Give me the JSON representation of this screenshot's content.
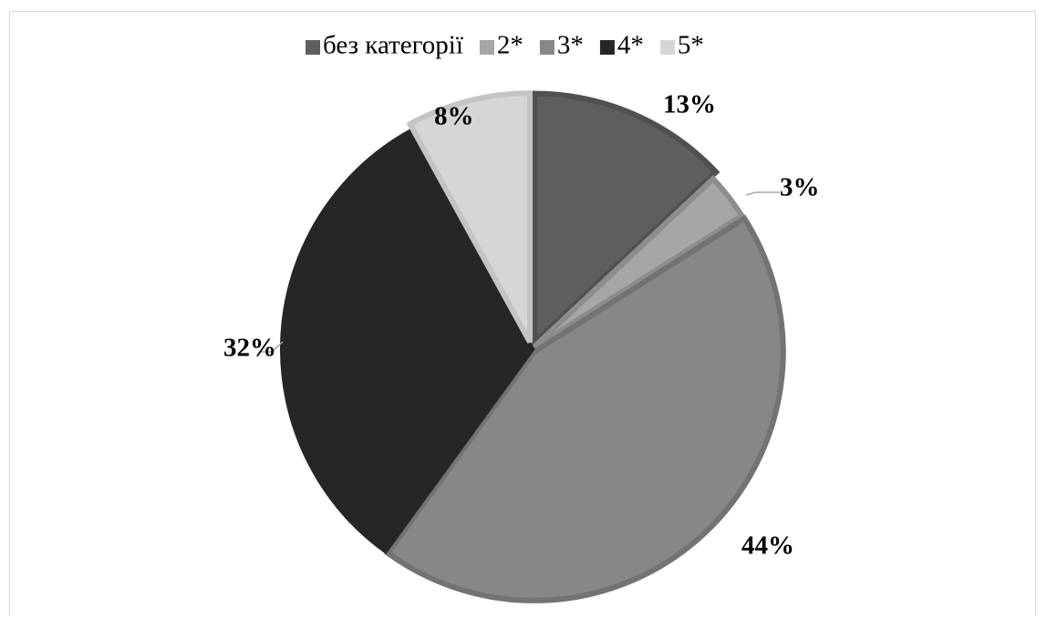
{
  "chart_data": {
    "type": "pie",
    "title": "",
    "series": [
      {
        "values": [
          13,
          3,
          44,
          32,
          8
        ]
      }
    ],
    "categories": [
      "без категорії",
      "2*",
      "3*",
      "4*",
      "5*"
    ],
    "data_labels": [
      "13%",
      "3%",
      "44%",
      "32%",
      "8%"
    ],
    "colors": [
      "#5e5e5e",
      "#a6a6a6",
      "#878787",
      "#262626",
      "#d6d6d6"
    ],
    "legend": "top",
    "start_angle_deg": 0,
    "direction": "clockwise"
  }
}
